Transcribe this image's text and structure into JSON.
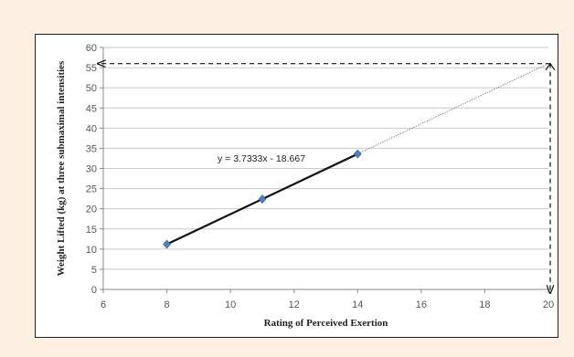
{
  "chart_data": {
    "type": "scatter",
    "title": "",
    "xlabel": "Rating of Perceived Exertion",
    "ylabel": "Weight Lifted (kg) at three submaximal intensities",
    "xlim": [
      6,
      20
    ],
    "ylim": [
      0,
      60
    ],
    "x_ticks": [
      "6",
      "8",
      "10",
      "12",
      "14",
      "16",
      "18",
      "20"
    ],
    "y_ticks": [
      "0",
      "5",
      "10",
      "15",
      "20",
      "25",
      "30",
      "35",
      "40",
      "45",
      "50",
      "55",
      "60"
    ],
    "grid": "horizontal",
    "series": [
      {
        "x": [
          8,
          11,
          14
        ],
        "y": [
          11.2,
          22.4,
          33.6
        ],
        "marker": "diamond",
        "marker_color": "#4f81bd"
      }
    ],
    "trendline": {
      "slope": 3.7333,
      "intercept": -18.667,
      "x_solid": [
        8,
        14
      ],
      "x_extended": [
        14,
        20
      ],
      "label": "y = 3.7333x - 18.667"
    },
    "projection": {
      "x": 20,
      "y": 56,
      "y_label": "56",
      "style": "dashed-arrows"
    }
  }
}
